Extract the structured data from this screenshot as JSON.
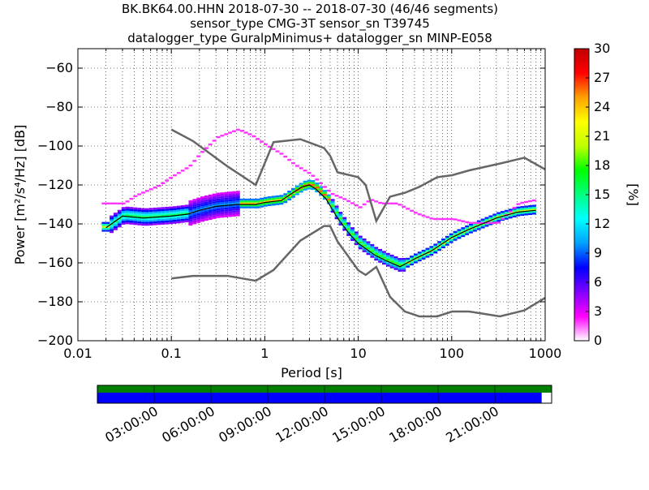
{
  "chart_data": {
    "type": "heatmap",
    "title_lines": [
      "BK.BK64.00.HHN   2018-07-30 -- 2018-07-30  (46/46 segments)",
      "sensor_type CMG-3T sensor_sn T39745",
      "datalogger_type GuralpMinimus+ datalogger_sn MINP-E058"
    ],
    "xlabel": "Period [s]",
    "ylabel": "Power [m²/s⁴/Hz] [dB]",
    "x_scale": "log",
    "xlim": [
      0.01,
      1000
    ],
    "ylim": [
      -200,
      -50
    ],
    "x_ticks": [
      {
        "value": 0.01,
        "label": "0.01"
      },
      {
        "value": 0.1,
        "label": "0.1"
      },
      {
        "value": 1,
        "label": "1"
      },
      {
        "value": 10,
        "label": "10"
      },
      {
        "value": 100,
        "label": "100"
      },
      {
        "value": 1000,
        "label": "1000"
      }
    ],
    "y_ticks": [
      {
        "value": -60,
        "label": "−60"
      },
      {
        "value": -80,
        "label": "−80"
      },
      {
        "value": -100,
        "label": "−100"
      },
      {
        "value": -120,
        "label": "−120"
      },
      {
        "value": -140,
        "label": "−140"
      },
      {
        "value": -160,
        "label": "−160"
      },
      {
        "value": -180,
        "label": "−180"
      },
      {
        "value": -200,
        "label": "−200"
      }
    ],
    "grid": true,
    "colorbar": {
      "label": "[%]",
      "range": [
        0,
        30
      ],
      "ticks": [
        {
          "value": 0,
          "label": "0"
        },
        {
          "value": 3,
          "label": "3"
        },
        {
          "value": 6,
          "label": "6"
        },
        {
          "value": 9,
          "label": "9"
        },
        {
          "value": 12,
          "label": "12"
        },
        {
          "value": 15,
          "label": "15"
        },
        {
          "value": 18,
          "label": "18"
        },
        {
          "value": 21,
          "label": "21"
        },
        {
          "value": 24,
          "label": "24"
        },
        {
          "value": 27,
          "label": "27"
        },
        {
          "value": 30,
          "label": "30"
        }
      ],
      "stops": [
        "#ffffff",
        "#ff00ff",
        "#8000ff",
        "#0000ff",
        "#00a0ff",
        "#00ffff",
        "#00ff80",
        "#00ff00",
        "#c0ff00",
        "#ffff00",
        "#ffa000",
        "#ff0000",
        "#c00000"
      ]
    },
    "noise_models": [
      {
        "name": "NHNM",
        "points": [
          [
            0.1,
            -91.5
          ],
          [
            0.17,
            -97.4
          ],
          [
            0.4,
            -110.5
          ],
          [
            0.8,
            -120
          ],
          [
            1.24,
            -98
          ],
          [
            2.4,
            -96.5
          ],
          [
            4.3,
            -101
          ],
          [
            5,
            -105
          ],
          [
            6,
            -113.5
          ],
          [
            10,
            -116
          ],
          [
            12,
            -120
          ],
          [
            15.6,
            -138.5
          ],
          [
            21.9,
            -126
          ],
          [
            31.6,
            -124
          ],
          [
            45,
            -121
          ],
          [
            70,
            -116
          ],
          [
            101,
            -115
          ],
          [
            154,
            -112.5
          ],
          [
            328,
            -109
          ],
          [
            600,
            -106
          ],
          [
            1000,
            -112
          ]
        ]
      },
      {
        "name": "NLNM",
        "points": [
          [
            0.1,
            -168
          ],
          [
            0.17,
            -166.7
          ],
          [
            0.4,
            -166.7
          ],
          [
            0.8,
            -169.2
          ],
          [
            1.24,
            -163.7
          ],
          [
            2.4,
            -148.6
          ],
          [
            4.3,
            -141.1
          ],
          [
            5,
            -141.1
          ],
          [
            6,
            -149
          ],
          [
            10,
            -163.8
          ],
          [
            12,
            -166.2
          ],
          [
            15.6,
            -162.1
          ],
          [
            21.9,
            -177.5
          ],
          [
            31.6,
            -185
          ],
          [
            45,
            -187.5
          ],
          [
            70,
            -187.5
          ],
          [
            101,
            -185
          ],
          [
            154,
            -185
          ],
          [
            328,
            -187.5
          ],
          [
            600,
            -184.4
          ],
          [
            1000,
            -178
          ]
        ]
      }
    ],
    "mode_curve": {
      "name": "mode",
      "points": [
        [
          0.02,
          -142
        ],
        [
          0.03,
          -136
        ],
        [
          0.05,
          -137
        ],
        [
          0.1,
          -136
        ],
        [
          0.15,
          -135
        ],
        [
          0.2,
          -133
        ],
        [
          0.3,
          -131
        ],
        [
          0.5,
          -130
        ],
        [
          0.8,
          -130
        ],
        [
          1,
          -129
        ],
        [
          1.5,
          -128
        ],
        [
          2,
          -124
        ],
        [
          2.5,
          -121
        ],
        [
          3,
          -120
        ],
        [
          3.5,
          -122
        ],
        [
          4.5,
          -127
        ],
        [
          6,
          -137
        ],
        [
          8,
          -145
        ],
        [
          10,
          -150
        ],
        [
          15,
          -156
        ],
        [
          20,
          -159
        ],
        [
          28,
          -162
        ],
        [
          40,
          -158
        ],
        [
          60,
          -154
        ],
        [
          100,
          -147
        ],
        [
          150,
          -143
        ],
        [
          300,
          -137
        ],
        [
          500,
          -134
        ],
        [
          800,
          -133
        ]
      ]
    },
    "upper_envelope": {
      "points": [
        [
          0.02,
          -130
        ],
        [
          0.03,
          -130
        ],
        [
          0.04,
          -126
        ],
        [
          0.07,
          -121
        ],
        [
          0.1,
          -116
        ],
        [
          0.15,
          -111
        ],
        [
          0.2,
          -104
        ],
        [
          0.3,
          -96
        ],
        [
          0.5,
          -92
        ],
        [
          0.7,
          -95
        ],
        [
          1,
          -100
        ],
        [
          1.5,
          -105
        ],
        [
          2,
          -110
        ],
        [
          3,
          -115
        ],
        [
          5,
          -125
        ],
        [
          7,
          -128
        ],
        [
          10,
          -132
        ],
        [
          13,
          -128
        ],
        [
          17,
          -130
        ],
        [
          25,
          -130
        ],
        [
          40,
          -135
        ],
        [
          60,
          -138
        ],
        [
          100,
          -138
        ],
        [
          150,
          -140
        ],
        [
          300,
          -140
        ],
        [
          500,
          -130
        ],
        [
          800,
          -128
        ]
      ]
    },
    "histogram_bands": [
      {
        "x0": 0.02,
        "x1": 0.15,
        "y_center": -136,
        "width_db": 4,
        "pct": 14
      },
      {
        "x0": 0.15,
        "x1": 0.5,
        "y_center": -131,
        "width_db": 6,
        "pct": 8
      },
      {
        "x0": 0.5,
        "x1": 2,
        "y_center": -129,
        "width_db": 2,
        "pct": 22
      },
      {
        "x0": 2,
        "x1": 5,
        "y_center": -122,
        "width_db": 2,
        "pct": 24
      },
      {
        "x0": 5,
        "x1": 30,
        "y_center": -152,
        "width_db": 3,
        "pct": 16
      },
      {
        "x0": 30,
        "x1": 800,
        "y_center": -147,
        "width_db": 2,
        "pct": 18
      }
    ],
    "time_coverage": {
      "labels": [
        "03:00:00",
        "06:00:00",
        "09:00:00",
        "12:00:00",
        "15:00:00",
        "18:00:00",
        "21:00:00"
      ],
      "tick_hours": [
        3,
        6,
        9,
        12,
        15,
        18,
        21
      ],
      "total_hours": 24,
      "data_fraction": 1.0,
      "psd_fraction": 0.978,
      "data_color": "#008000",
      "psd_color": "#0000ff"
    }
  }
}
